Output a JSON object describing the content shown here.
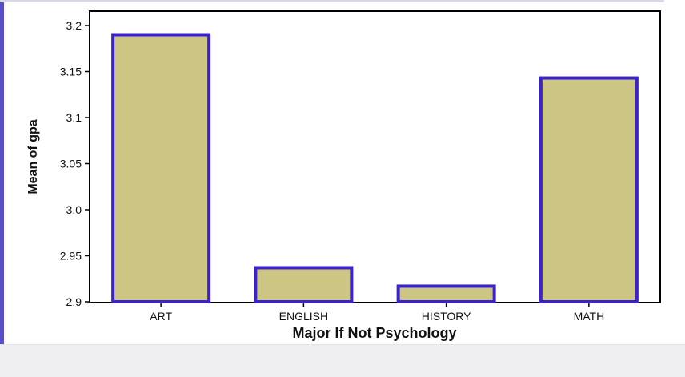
{
  "chart_data": {
    "type": "bar",
    "categories": [
      "ART",
      "ENGLISH",
      "HISTORY",
      "MATH"
    ],
    "values": [
      3.19,
      2.937,
      2.917,
      3.143
    ],
    "xlabel": "Major If Not Psychology",
    "ylabel": "Mean of gpa",
    "ylim": [
      2.9,
      3.2
    ],
    "yticks": [
      "2.9",
      "2.95",
      "3.0",
      "3.05",
      "3.1",
      "3.15",
      "3.2"
    ],
    "grid": false,
    "colors": {
      "bar_fill": "#ccc583",
      "bar_outline": "#3a23c9",
      "axis": "#000000"
    }
  }
}
